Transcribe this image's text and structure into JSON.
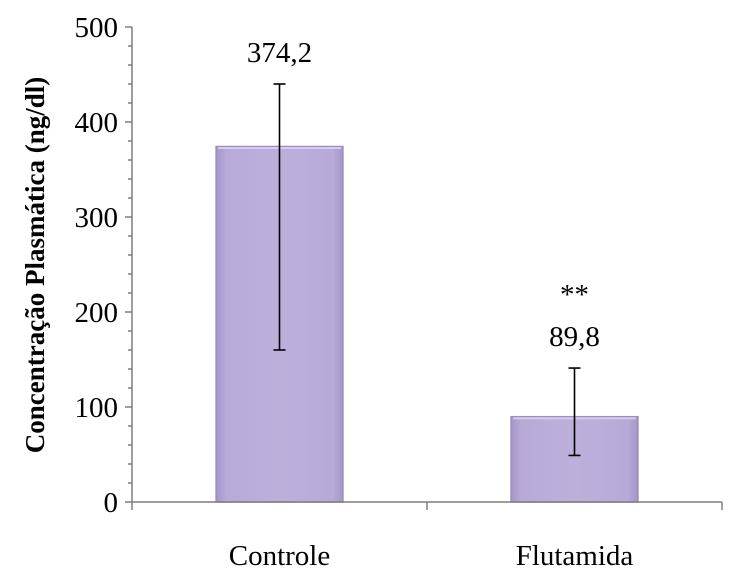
{
  "chart_data": {
    "type": "bar",
    "categories": [
      "Controle",
      "Flutamida"
    ],
    "values": [
      374.2,
      89.8
    ],
    "data_labels": [
      "374,2",
      "89,8"
    ],
    "error_bars": [
      {
        "low": 160,
        "high": 440
      },
      {
        "low": 49,
        "high": 141
      }
    ],
    "annotations": [
      "",
      "**"
    ],
    "title": "",
    "xlabel": "",
    "ylabel": "Concentração Plasmática (ng/dl)",
    "ylim": [
      0,
      500
    ],
    "yticks": [
      "0",
      "100",
      "200",
      "300",
      "400",
      "500"
    ],
    "ytick_values": [
      0,
      100,
      200,
      300,
      400,
      500
    ],
    "grid": false,
    "legend": "none",
    "bar_color": "#b3a6d4",
    "bar_edge_color": "#9b8cc2"
  }
}
